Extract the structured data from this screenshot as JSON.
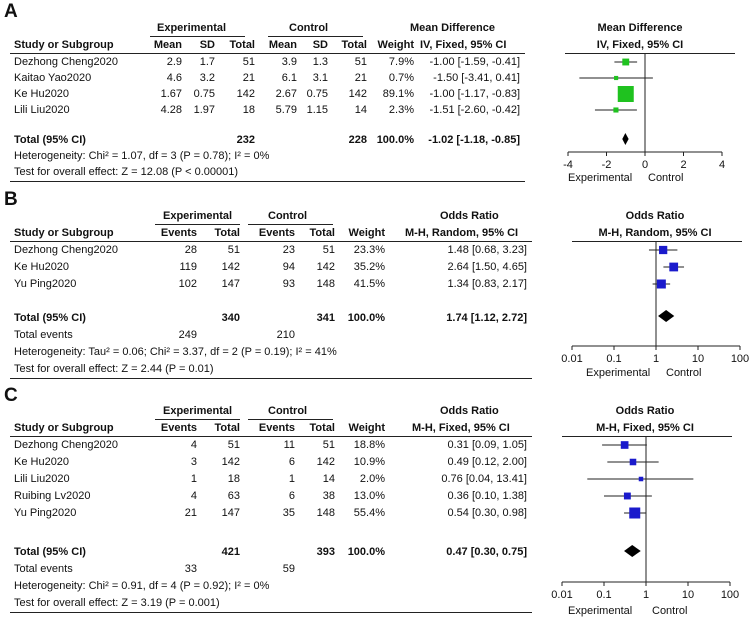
{
  "panels": [
    {
      "letter": "A",
      "group_headers": [
        "Experimental",
        "Control"
      ],
      "effect_header": [
        "Mean Difference",
        "IV, Fixed, 95% CI"
      ],
      "plot_title": [
        "Mean Difference",
        "IV, Fixed, 95% CI"
      ],
      "col_headers": [
        "Study or Subgroup",
        "Mean",
        "SD",
        "Total",
        "Mean",
        "SD",
        "Total",
        "Weight"
      ],
      "studies": [
        {
          "name": "Dezhong Cheng2020",
          "cells": [
            "2.9",
            "1.7",
            "51",
            "3.9",
            "1.3",
            "51"
          ],
          "weight": "7.9%",
          "ci_text": "-1.00 [-1.59, -0.41]"
        },
        {
          "name": "Kaitao Yao2020",
          "cells": [
            "4.6",
            "3.2",
            "21",
            "6.1",
            "3.1",
            "21"
          ],
          "weight": "0.7%",
          "ci_text": "-1.50 [-3.41, 0.41]"
        },
        {
          "name": "Ke Hu2020",
          "cells": [
            "1.67",
            "0.75",
            "142",
            "2.67",
            "0.75",
            "142"
          ],
          "weight": "89.1%",
          "ci_text": "-1.00 [-1.17, -0.83]"
        },
        {
          "name": "Lili Liu2020",
          "cells": [
            "4.28",
            "1.97",
            "18",
            "5.79",
            "1.15",
            "14"
          ],
          "weight": "2.3%",
          "ci_text": "-1.51 [-2.60, -0.42]"
        }
      ],
      "total": {
        "label": "Total (95% CI)",
        "exp_total": "232",
        "ctrl_total": "228",
        "weight": "100.0%",
        "ci_text": "-1.02 [-1.18, -0.85]"
      },
      "total_events": null,
      "stats": [
        "Heterogeneity: Chi² = 1.07, df = 3 (P = 0.78); I² = 0%",
        "Test for overall effect: Z = 12.08 (P < 0.00001)"
      ],
      "favours": [
        "Experimental",
        "Control"
      ]
    },
    {
      "letter": "B",
      "group_headers": [
        "Experimental",
        "Control"
      ],
      "effect_header": [
        "Odds Ratio",
        "M-H, Random, 95% CI"
      ],
      "plot_title": [
        "Odds Ratio",
        "M-H, Random, 95% CI"
      ],
      "col_headers": [
        "Study or Subgroup",
        "Events",
        "Total",
        "Events",
        "Total",
        "Weight"
      ],
      "studies": [
        {
          "name": "Dezhong Cheng2020",
          "cells": [
            "28",
            "51",
            "23",
            "51"
          ],
          "weight": "23.3%",
          "ci_text": "1.48 [0.68, 3.23]"
        },
        {
          "name": "Ke Hu2020",
          "cells": [
            "119",
            "142",
            "94",
            "142"
          ],
          "weight": "35.2%",
          "ci_text": "2.64 [1.50, 4.65]"
        },
        {
          "name": "Yu Ping2020",
          "cells": [
            "102",
            "147",
            "93",
            "148"
          ],
          "weight": "41.5%",
          "ci_text": "1.34 [0.83, 2.17]"
        }
      ],
      "total": {
        "label": "Total (95% CI)",
        "exp_total": "340",
        "ctrl_total": "341",
        "weight": "100.0%",
        "ci_text": "1.74 [1.12, 2.72]"
      },
      "total_events": {
        "label": "Total events",
        "exp": "249",
        "ctrl": "210"
      },
      "stats": [
        "Heterogeneity: Tau² = 0.06; Chi² = 3.37, df = 2 (P = 0.19); I² = 41%",
        "Test for overall effect: Z = 2.44 (P = 0.01)"
      ],
      "favours": [
        "Experimental",
        "Control"
      ]
    },
    {
      "letter": "C",
      "group_headers": [
        "Experimental",
        "Control"
      ],
      "effect_header": [
        "Odds Ratio",
        "M-H, Fixed, 95% CI"
      ],
      "plot_title": [
        "Odds Ratio",
        "M-H, Fixed, 95% CI"
      ],
      "col_headers": [
        "Study or Subgroup",
        "Events",
        "Total",
        "Events",
        "Total",
        "Weight"
      ],
      "studies": [
        {
          "name": "Dezhong Cheng2020",
          "cells": [
            "4",
            "51",
            "11",
            "51"
          ],
          "weight": "18.8%",
          "ci_text": "0.31 [0.09, 1.05]"
        },
        {
          "name": "Ke Hu2020",
          "cells": [
            "3",
            "142",
            "6",
            "142"
          ],
          "weight": "10.9%",
          "ci_text": "0.49 [0.12, 2.00]"
        },
        {
          "name": "Lili Liu2020",
          "cells": [
            "1",
            "18",
            "1",
            "14"
          ],
          "weight": "2.0%",
          "ci_text": "0.76 [0.04, 13.41]"
        },
        {
          "name": "Ruibing Lv2020",
          "cells": [
            "4",
            "63",
            "6",
            "38"
          ],
          "weight": "13.0%",
          "ci_text": "0.36 [0.10, 1.38]"
        },
        {
          "name": "Yu Ping2020",
          "cells": [
            "21",
            "147",
            "35",
            "148"
          ],
          "weight": "55.4%",
          "ci_text": "0.54 [0.30, 0.98]"
        }
      ],
      "total": {
        "label": "Total (95% CI)",
        "exp_total": "421",
        "ctrl_total": "393",
        "weight": "100.0%",
        "ci_text": "0.47 [0.30, 0.75]"
      },
      "total_events": {
        "label": "Total events",
        "exp": "33",
        "ctrl": "59"
      },
      "stats": [
        "Heterogeneity: Chi² = 0.91, df = 4 (P = 0.92); I² = 0%",
        "Test for overall effect: Z = 3.19 (P = 0.001)"
      ],
      "favours": [
        "Experimental",
        "Control"
      ]
    }
  ],
  "chart_data": [
    {
      "type": "forest",
      "scale": "linear",
      "xlim": [
        -4,
        4
      ],
      "ticks": [
        -4,
        -2,
        0,
        2,
        4
      ],
      "tick_labels": [
        "-4",
        "-2",
        "0",
        "2",
        "4"
      ],
      "marker_color": "#1fc21f",
      "estimates": [
        -1.0,
        -1.5,
        -1.0,
        -1.51
      ],
      "ci_low": [
        -1.59,
        -3.41,
        -1.17,
        -2.6
      ],
      "ci_high": [
        -0.41,
        0.41,
        -0.83,
        -0.42
      ],
      "weights": [
        7.9,
        0.7,
        89.1,
        2.3
      ],
      "pooled": {
        "estimate": -1.02,
        "low": -1.18,
        "high": -0.85
      }
    },
    {
      "type": "forest",
      "scale": "log",
      "xlim": [
        0.01,
        100
      ],
      "ticks": [
        0.01,
        0.1,
        1,
        10,
        100
      ],
      "tick_labels": [
        "0.01",
        "0.1",
        "1",
        "10",
        "100"
      ],
      "marker_color": "#1a1acc",
      "estimates": [
        1.48,
        2.64,
        1.34
      ],
      "ci_low": [
        0.68,
        1.5,
        0.83
      ],
      "ci_high": [
        3.23,
        4.65,
        2.17
      ],
      "weights": [
        23.3,
        35.2,
        41.5
      ],
      "pooled": {
        "estimate": 1.74,
        "low": 1.12,
        "high": 2.72
      }
    },
    {
      "type": "forest",
      "scale": "log",
      "xlim": [
        0.01,
        100
      ],
      "ticks": [
        0.01,
        0.1,
        1,
        10,
        100
      ],
      "tick_labels": [
        "0.01",
        "0.1",
        "1",
        "10",
        "100"
      ],
      "marker_color": "#1a1acc",
      "estimates": [
        0.31,
        0.49,
        0.76,
        0.36,
        0.54
      ],
      "ci_low": [
        0.09,
        0.12,
        0.04,
        0.1,
        0.3
      ],
      "ci_high": [
        1.05,
        2.0,
        13.41,
        1.38,
        0.98
      ],
      "weights": [
        18.8,
        10.9,
        2.0,
        13.0,
        55.4
      ],
      "pooled": {
        "estimate": 0.47,
        "low": 0.3,
        "high": 0.75
      }
    }
  ]
}
